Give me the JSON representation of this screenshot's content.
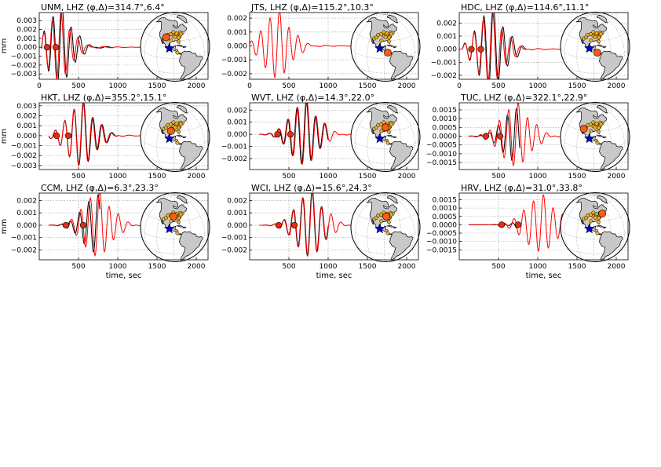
{
  "figure": {
    "colors": {
      "observed": "#000000",
      "synthetic": "#ff0000",
      "marker": "#e03010",
      "ocean": "#ffffff",
      "land": "#c8c8c8",
      "event_star": "#0000cc",
      "station_dot": "#f0b020",
      "target_station": "#ff5a14"
    }
  },
  "chart_data": [
    {
      "type": "line",
      "title": "UNM, LHZ (φ,Δ)=314.7°,6.4°",
      "station": "UNM",
      "channel": "LHZ",
      "azimuth_deg": 314.7,
      "distance_deg": 6.4,
      "ylabel": "mm",
      "xlabel": "",
      "xlim": [
        0,
        2150
      ],
      "ylim": [
        -0.0036,
        0.0039
      ],
      "xticks": [
        0,
        500,
        1000,
        1500,
        2000
      ],
      "yticks": [
        0.003,
        0.002,
        0.001,
        0.0,
        -0.001,
        -0.002,
        -0.003
      ],
      "ytick_labels": [
        "0.003",
        "0.002",
        "0.001",
        "0.000",
        "−0.001",
        "−0.002",
        "−0.003"
      ],
      "markers_x": [
        100,
        210
      ],
      "synthetic": {
        "t0": 250,
        "amp": 0.0036,
        "period": 110,
        "decay": 150,
        "env_scale": 1,
        "start": 30,
        "end": 2150
      },
      "observed": {
        "t0": 262,
        "amp": 0.004,
        "period": 115,
        "decay": 160,
        "env_scale": 1,
        "start": 30,
        "end": 940
      },
      "map": {
        "target": [
          -106.5,
          34.9
        ],
        "event": [
          -98,
          17
        ]
      }
    },
    {
      "type": "line",
      "title": "JTS, LHZ (φ,Δ)=115.2°,10.3°",
      "station": "JTS",
      "channel": "LHZ",
      "azimuth_deg": 115.2,
      "distance_deg": 10.3,
      "ylabel": "",
      "xlabel": "",
      "xlim": [
        0,
        2150
      ],
      "ylim": [
        -0.0024,
        0.0024
      ],
      "xticks": [
        0,
        500,
        1000,
        1500,
        2000
      ],
      "yticks": [
        0.002,
        0.001,
        0.0,
        -0.001,
        -0.002
      ],
      "ytick_labels": [
        "0.002",
        "0.001",
        "0.000",
        "−0.001",
        "−0.002"
      ],
      "markers_x": [],
      "synthetic": {
        "t0": 350,
        "amp": 0.0023,
        "period": 120,
        "decay": 170,
        "env_scale": 1,
        "start": 0,
        "end": 2150
      },
      "observed": null,
      "map": {
        "target": [
          -84,
          10
        ],
        "event": [
          -98,
          17
        ]
      }
    },
    {
      "type": "line",
      "title": "HDC, LHZ (φ,Δ)=114.6°,11.1°",
      "station": "HDC",
      "channel": "LHZ",
      "azimuth_deg": 114.6,
      "distance_deg": 11.1,
      "ylabel": "",
      "xlabel": "",
      "xlim": [
        0,
        2150
      ],
      "ylim": [
        -0.0023,
        0.0028
      ],
      "xticks": [
        0,
        500,
        1000,
        1500,
        2000
      ],
      "yticks": [
        0.002,
        0.001,
        0.0,
        -0.001,
        -0.002
      ],
      "ytick_labels": [
        "0.002",
        "0.001",
        "0.000",
        "−0.001",
        "−0.002"
      ],
      "markers_x": [
        155,
        275
      ],
      "synthetic": {
        "t0": 395,
        "amp": 0.0026,
        "period": 118,
        "decay": 170,
        "env_scale": 1,
        "start": 40,
        "end": 2150
      },
      "observed": {
        "t0": 405,
        "amp": 0.0029,
        "period": 122,
        "decay": 175,
        "env_scale": 1,
        "start": 40,
        "end": 860
      },
      "map": {
        "target": [
          -84.1,
          10.0
        ],
        "event": [
          -98,
          17
        ]
      }
    },
    {
      "type": "line",
      "title": "HKT, LHZ (φ,Δ)=355.2°,15.1°",
      "station": "HKT",
      "channel": "LHZ",
      "azimuth_deg": 355.2,
      "distance_deg": 15.1,
      "ylabel": "mm",
      "xlabel": "",
      "xlim": [
        0,
        2150
      ],
      "ylim": [
        -0.0034,
        0.0033
      ],
      "xticks": [
        500,
        1000,
        1500,
        2000
      ],
      "yticks": [
        0.003,
        0.002,
        0.001,
        0.0,
        -0.001,
        -0.002,
        -0.003
      ],
      "ytick_labels": [
        "0.003",
        "0.002",
        "0.001",
        "0.000",
        "−0.001",
        "−0.002",
        "−0.003"
      ],
      "markers_x": [
        220,
        370
      ],
      "synthetic": {
        "t0": 530,
        "amp": 0.003,
        "period": 118,
        "decay": 175,
        "env_scale": 1,
        "start": 120,
        "end": 2150
      },
      "observed": {
        "t0": 535,
        "amp": 0.003,
        "period": 120,
        "decay": 180,
        "env_scale": 1,
        "start": 120,
        "end": 1000
      },
      "map": {
        "target": [
          -95.8,
          29.9
        ],
        "event": [
          -98,
          17
        ]
      }
    },
    {
      "type": "line",
      "title": "WVT, LHZ (φ,Δ)=14.3°,22.0°",
      "station": "WVT",
      "channel": "LHZ",
      "azimuth_deg": 14.3,
      "distance_deg": 22.0,
      "ylabel": "",
      "xlabel": "",
      "xlim": [
        0,
        2150
      ],
      "ylim": [
        -0.0029,
        0.0026
      ],
      "xticks": [
        500,
        1000,
        1500,
        2000
      ],
      "yticks": [
        0.002,
        0.001,
        0.0,
        -0.001,
        -0.002
      ],
      "ytick_labels": [
        "0.002",
        "0.001",
        "0.000",
        "−0.001",
        "−0.002"
      ],
      "markers_x": [
        355,
        520
      ],
      "synthetic": {
        "t0": 700,
        "amp": 0.0025,
        "period": 118,
        "decay": 175,
        "env_scale": 1,
        "start": 120,
        "end": 2150
      },
      "observed": {
        "t0": 692,
        "amp": 0.0025,
        "period": 118,
        "decay": 175,
        "env_scale": 1,
        "start": 120,
        "end": 1000
      },
      "map": {
        "target": [
          -87.8,
          36.1
        ],
        "event": [
          -98,
          17
        ]
      }
    },
    {
      "type": "line",
      "title": "TUC, LHZ (φ,Δ)=322.1°,22.9°",
      "station": "TUC",
      "channel": "LHZ",
      "azimuth_deg": 322.1,
      "distance_deg": 22.9,
      "ylabel": "",
      "xlabel": "",
      "xlim": [
        0,
        2150
      ],
      "ylim": [
        -0.0019,
        0.0019
      ],
      "xticks": [
        500,
        1000,
        1500,
        2000
      ],
      "yticks": [
        0.0015,
        0.001,
        0.0005,
        0.0,
        -0.0005,
        -0.001,
        -0.0015
      ],
      "ytick_labels": [
        "0.0015",
        "0.0010",
        "0.0005",
        "0.0000",
        "−0.0005",
        "−0.0010",
        "−0.0015"
      ],
      "markers_x": [
        340,
        520
      ],
      "synthetic": {
        "t0": 720,
        "amp": 0.0017,
        "period": 120,
        "decay": 185,
        "env_scale": 1,
        "start": 120,
        "end": 2150
      },
      "observed": {
        "t0": 700,
        "amp": 0.0014,
        "period": 115,
        "decay": 160,
        "env_scale": 1,
        "start": 120,
        "end": 770
      },
      "map": {
        "target": [
          -110.8,
          32.3
        ],
        "event": [
          -98,
          17
        ]
      }
    },
    {
      "type": "line",
      "title": "CCM, LHZ (φ,Δ)=6.3°,23.3°",
      "station": "CCM",
      "channel": "LHZ",
      "azimuth_deg": 6.3,
      "distance_deg": 23.3,
      "ylabel": "mm",
      "xlabel": "time, sec",
      "xlim": [
        0,
        2150
      ],
      "ylim": [
        -0.0028,
        0.0026
      ],
      "xticks": [
        500,
        1000,
        1500,
        2000
      ],
      "yticks": [
        0.002,
        0.001,
        0.0,
        -0.001,
        -0.002
      ],
      "ytick_labels": [
        "0.002",
        "0.001",
        "0.000",
        "−0.001",
        "−0.002"
      ],
      "markers_x": [
        340,
        560
      ],
      "synthetic": {
        "t0": 740,
        "amp": 0.0025,
        "period": 120,
        "decay": 180,
        "env_scale": 1,
        "start": 120,
        "end": 2150
      },
      "observed": {
        "t0": 720,
        "amp": 0.0022,
        "period": 118,
        "decay": 170,
        "env_scale": 1,
        "start": 120,
        "end": 770
      },
      "map": {
        "target": [
          -91.2,
          38.1
        ],
        "event": [
          -98,
          17
        ]
      }
    },
    {
      "type": "line",
      "title": "WCI, LHZ (φ,Δ)=15.6°,24.3°",
      "station": "WCI",
      "channel": "LHZ",
      "azimuth_deg": 15.6,
      "distance_deg": 24.3,
      "ylabel": "",
      "xlabel": "time, sec",
      "xlim": [
        0,
        2150
      ],
      "ylim": [
        -0.0028,
        0.0026
      ],
      "xticks": [
        500,
        1000,
        1500,
        2000
      ],
      "yticks": [
        0.002,
        0.001,
        0.0,
        -0.001,
        -0.002
      ],
      "ytick_labels": [
        "0.002",
        "0.001",
        "0.000",
        "−0.001",
        "−0.002"
      ],
      "markers_x": [
        370,
        570
      ],
      "synthetic": {
        "t0": 770,
        "amp": 0.0025,
        "period": 120,
        "decay": 180,
        "env_scale": 1,
        "start": 120,
        "end": 2150
      },
      "observed": {
        "t0": 765,
        "amp": 0.0025,
        "period": 120,
        "decay": 175,
        "env_scale": 1,
        "start": 120,
        "end": 1000
      },
      "map": {
        "target": [
          -86.3,
          38.2
        ],
        "event": [
          -98,
          17
        ]
      }
    },
    {
      "type": "line",
      "title": "HRV, LHZ (φ,Δ)=31.0°,33.8°",
      "station": "HRV",
      "channel": "LHZ",
      "azimuth_deg": 31.0,
      "distance_deg": 33.8,
      "ylabel": "",
      "xlabel": "time, sec",
      "xlim": [
        0,
        2150
      ],
      "ylim": [
        -0.0021,
        0.0019
      ],
      "xticks": [
        500,
        1000,
        1500,
        2000
      ],
      "yticks": [
        0.0015,
        0.001,
        0.0005,
        0.0,
        -0.0005,
        -0.001,
        -0.0015
      ],
      "ytick_labels": [
        "0.0015",
        "0.0010",
        "0.0005",
        "0.0000",
        "−0.0005",
        "−0.0010",
        "−0.0015"
      ],
      "markers_x": [
        540,
        750
      ],
      "synthetic": {
        "t0": 1040,
        "amp": 0.0016,
        "period": 125,
        "decay": 200,
        "env_scale": 1,
        "start": 120,
        "end": 2150
      },
      "observed": {
        "t0": 760,
        "amp": 0.0002,
        "period": 110,
        "decay": 80,
        "env_scale": 1,
        "start": 120,
        "end": 770
      },
      "map": {
        "target": [
          -71.6,
          42.5
        ],
        "event": [
          -98,
          17
        ]
      }
    }
  ]
}
